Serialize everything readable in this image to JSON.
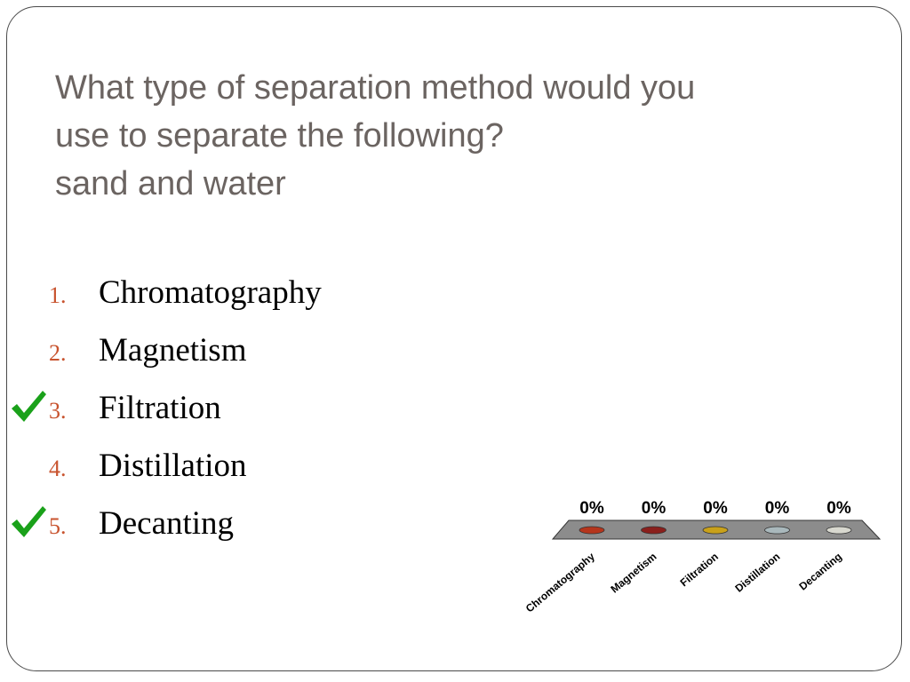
{
  "slide": {
    "title_lines": [
      "What type of separation method would you",
      "use to separate the following?",
      "sand and water"
    ]
  },
  "options": [
    {
      "number": "1.",
      "label": "Chromatography",
      "correct": false
    },
    {
      "number": "2.",
      "label": "Magnetism",
      "correct": false
    },
    {
      "number": "3.",
      "label": "Filtration",
      "correct": true
    },
    {
      "number": "4.",
      "label": "Distillation",
      "correct": false
    },
    {
      "number": "5.",
      "label": "Decanting",
      "correct": true
    }
  ],
  "colors": {
    "title": "#6b6461",
    "number": "#c8532e",
    "check": "#1aa11a",
    "platform": "#8c8c8c"
  },
  "chart_data": {
    "type": "bar",
    "categories": [
      "Chromatography",
      "Magnetism",
      "Filtration",
      "Distillation",
      "Decanting"
    ],
    "values": [
      0,
      0,
      0,
      0,
      0
    ],
    "value_labels": [
      "0%",
      "0%",
      "0%",
      "0%",
      "0%"
    ],
    "colors": [
      "#b5351c",
      "#8a1f1c",
      "#c9a11a",
      "#a9b8bc",
      "#d8d8cf"
    ],
    "title": "",
    "xlabel": "",
    "ylabel": "",
    "ylim": [
      0,
      100
    ]
  }
}
